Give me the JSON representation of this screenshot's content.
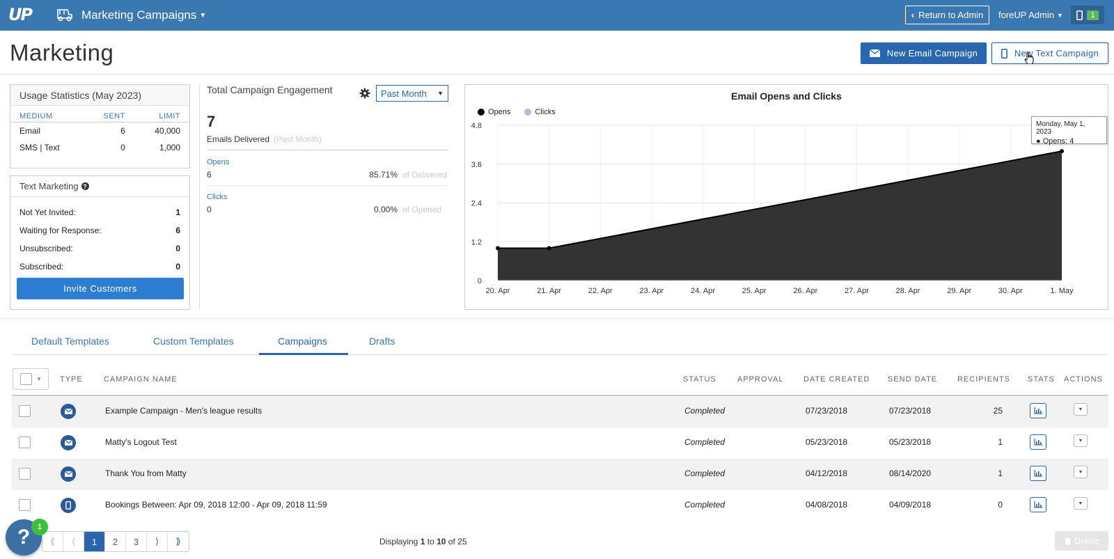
{
  "topbar": {
    "logo": "UP",
    "app_title": "Marketing Campaigns",
    "return_label": "Return to Admin",
    "admin_label": "foreUP Admin",
    "device_count": "1",
    "bg_color": "#3a78b1"
  },
  "header": {
    "title": "Marketing",
    "new_email_label": "New Email Campaign",
    "new_text_label": "New Text Campaign"
  },
  "usage": {
    "title": "Usage Statistics (May 2023)",
    "columns": [
      "MEDIUM",
      "SENT",
      "LIMIT"
    ],
    "rows": [
      {
        "medium": "Email",
        "sent": "6",
        "limit": "40,000"
      },
      {
        "medium": "SMS | Text",
        "sent": "0",
        "limit": "1,000"
      }
    ]
  },
  "text_marketing": {
    "title": "Text Marketing",
    "help_glyph": "?",
    "rows": [
      {
        "label": "Not Yet Invited:",
        "value": "1"
      },
      {
        "label": "Waiting for Response:",
        "value": "6"
      },
      {
        "label": "Unsubscribed:",
        "value": "0"
      },
      {
        "label": "Subscribed:",
        "value": "0"
      }
    ],
    "invite_label": "Invite Customers"
  },
  "engagement": {
    "title": "Total Campaign Engagement",
    "period": "Past Month",
    "delivered_count": "7",
    "delivered_label": "Emails Delivered",
    "delivered_note": "(Past Month)",
    "opens_label": "Opens",
    "opens_value": "6",
    "opens_pct": "85.71%",
    "opens_of": "of Delivered",
    "clicks_label": "Clicks",
    "clicks_value": "0",
    "clicks_pct": "0.00%",
    "clicks_of": "of Opened"
  },
  "chart_data": {
    "type": "area",
    "title": "Email Opens and Clicks",
    "x": [
      "20. Apr",
      "21. Apr",
      "22. Apr",
      "23. Apr",
      "24. Apr",
      "25. Apr",
      "26. Apr",
      "27. Apr",
      "28. Apr",
      "29. Apr",
      "30. Apr",
      "1. May"
    ],
    "series": [
      {
        "name": "Opens",
        "color": "#000000",
        "points": [
          {
            "x": "20. Apr",
            "y": 1
          },
          {
            "x": "21. Apr",
            "y": 1
          },
          {
            "x": "1. May",
            "y": 4
          }
        ]
      },
      {
        "name": "Clicks",
        "color": "#a9c0e6",
        "points": []
      }
    ],
    "yticks": [
      "0",
      "1.2",
      "2.4",
      "3.6",
      "4.8"
    ],
    "ylim": [
      0,
      4.8
    ],
    "grid": true,
    "legend": "top-left",
    "tooltip": {
      "title": "Monday, May 1, 2023",
      "body": "Opens: 4"
    }
  },
  "tabs": [
    {
      "label": "Default Templates",
      "active": false
    },
    {
      "label": "Custom Templates",
      "active": false
    },
    {
      "label": "Campaigns",
      "active": true
    },
    {
      "label": "Drafts",
      "active": false
    }
  ],
  "table": {
    "columns": {
      "type": "TYPE",
      "name": "CAMPAIGN NAME",
      "status": "STATUS",
      "approval": "APPROVAL",
      "created": "DATE CREATED",
      "send": "SEND DATE",
      "recipients": "RECIPIENTS",
      "stats": "STATS",
      "actions": "ACTIONS"
    },
    "rows": [
      {
        "type": "email-icon",
        "name": "Example Campaign - Men's league results",
        "status": "Completed",
        "created": "07/23/2018",
        "send": "07/23/2018",
        "recipients": "25"
      },
      {
        "type": "email-icon",
        "name": "Matty's Logout Test",
        "status": "Completed",
        "created": "05/23/2018",
        "send": "05/23/2018",
        "recipients": "1"
      },
      {
        "type": "email-icon",
        "name": "Thank You from Matty",
        "status": "Completed",
        "created": "04/12/2018",
        "send": "08/14/2020",
        "recipients": "1"
      },
      {
        "type": "phone-icon",
        "name": "Bookings Between: Apr 09, 2018 12:00 - Apr 09, 2018 11:59",
        "status": "Completed",
        "created": "04/08/2018",
        "send": "04/09/2018",
        "recipients": "0"
      }
    ]
  },
  "footer": {
    "pages": [
      "1",
      "2",
      "3"
    ],
    "first_glyph": "⟪",
    "prev_glyph": "⟨",
    "next_glyph": "⟩",
    "last_glyph": "⟫",
    "displaying_prefix": "Displaying",
    "displaying_from": "1",
    "displaying_to_word": "to",
    "displaying_to": "10",
    "displaying_of_word": "of",
    "displaying_total": "25",
    "delete_label": "Delete",
    "help_glyph": "?",
    "help_badge": "1"
  }
}
